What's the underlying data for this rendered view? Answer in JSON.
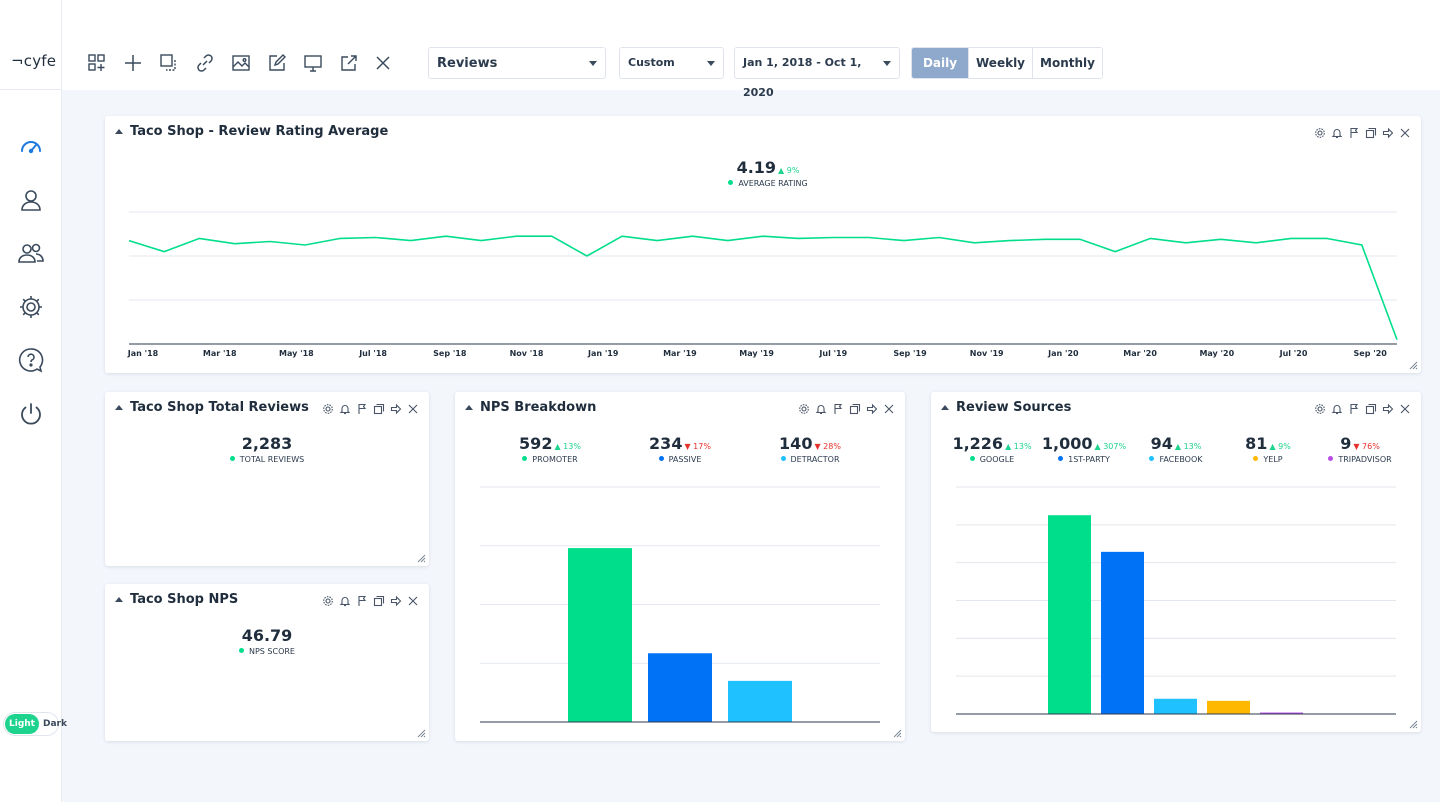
{
  "app": {
    "logo": "¬cyfe"
  },
  "toolbar": {
    "dashboard_select": "Reviews",
    "range_type_select": "Custom",
    "date_range_select": "Jan 1, 2018 - Oct 1, 2020",
    "periods": [
      "Daily",
      "Weekly",
      "Monthly"
    ],
    "active_period": "Daily"
  },
  "theme_toggle": {
    "light": "Light",
    "dark": "Dark"
  },
  "colors": {
    "green": "#00de8c",
    "blue": "#0072f5",
    "light_blue": "#1fc1ff",
    "yellow": "#ffb800",
    "purple": "#b84ce6",
    "line": "#00de8c"
  },
  "widgets": {
    "rating": {
      "title": "Taco Shop - Review Rating Average",
      "kpi": {
        "value": "4.19",
        "change": "▲ 9%",
        "label": "AVERAGE RATING"
      },
      "chart_data": {
        "type": "line",
        "x_labels": [
          "Jan '18",
          "Mar '18",
          "May '18",
          "Jul '18",
          "Sep '18",
          "Nov '18",
          "Jan '19",
          "Mar '19",
          "May '19",
          "Jul '19",
          "Sep '19",
          "Nov '19",
          "Jan '20",
          "Mar '20",
          "May '20",
          "Jul '20",
          "Sep '20"
        ],
        "values": [
          4.35,
          4.1,
          4.4,
          4.28,
          4.33,
          4.25,
          4.4,
          4.42,
          4.35,
          4.45,
          4.35,
          4.45,
          4.45,
          4.0,
          4.45,
          4.35,
          4.45,
          4.35,
          4.45,
          4.4,
          4.42,
          4.42,
          4.35,
          4.42,
          4.3,
          4.35,
          4.38,
          4.38,
          4.1,
          4.4,
          4.3,
          4.38,
          4.3,
          4.4,
          4.4,
          4.25,
          2.1
        ],
        "ylim": [
          2,
          5
        ],
        "grid": true
      }
    },
    "total_reviews": {
      "title": "Taco Shop Total Reviews",
      "kpi": {
        "value": "2,283",
        "label": "TOTAL REVIEWS"
      }
    },
    "nps": {
      "title": "Taco Shop NPS",
      "kpi": {
        "value": "46.79",
        "label": "NPS SCORE"
      }
    },
    "nps_breakdown": {
      "title": "NPS Breakdown",
      "kpis": [
        {
          "value": "592",
          "change": "▲ 13%",
          "dir": "up",
          "label": "PROMOTER",
          "color": "#00de8c"
        },
        {
          "value": "234",
          "change": "▼ 17%",
          "dir": "down",
          "label": "PASSIVE",
          "color": "#0072f5"
        },
        {
          "value": "140",
          "change": "▼ 28%",
          "dir": "down",
          "label": "DETRACTOR",
          "color": "#1fc1ff"
        }
      ],
      "chart_data": {
        "type": "bar",
        "categories": [
          "Promoter",
          "Passive",
          "Detractor"
        ],
        "values": [
          592,
          234,
          140
        ],
        "ylim": [
          0,
          800
        ],
        "grid": true
      }
    },
    "review_sources": {
      "title": "Review Sources",
      "kpis": [
        {
          "value": "1,226",
          "change": "▲ 13%",
          "dir": "up",
          "label": "GOOGLE",
          "color": "#00de8c"
        },
        {
          "value": "1,000",
          "change": "▲ 307%",
          "dir": "up",
          "label": "1ST-PARTY",
          "color": "#0072f5"
        },
        {
          "value": "94",
          "change": "▲ 13%",
          "dir": "up",
          "label": "FACEBOOK",
          "color": "#1fc1ff"
        },
        {
          "value": "81",
          "change": "▲ 9%",
          "dir": "up",
          "label": "YELP",
          "color": "#ffb800"
        },
        {
          "value": "9",
          "change": "▼ 76%",
          "dir": "down",
          "label": "TRIPADVISOR",
          "color": "#b84ce6"
        }
      ],
      "chart_data": {
        "type": "bar",
        "categories": [
          "Google",
          "1st-Party",
          "Facebook",
          "Yelp",
          "TripAdvisor"
        ],
        "values": [
          1226,
          1000,
          94,
          81,
          9
        ],
        "ylim": [
          0,
          1400
        ],
        "grid": true
      }
    }
  }
}
